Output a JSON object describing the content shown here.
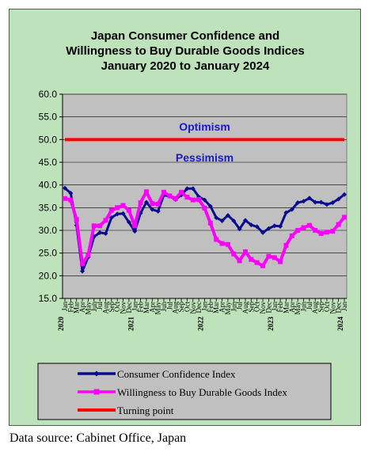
{
  "source_note": "Data source: Cabinet Office, Japan",
  "chart_data": {
    "type": "line",
    "title": [
      "Japan Consumer Confidence and",
      "Willingness to Buy Durable Goods Indices",
      "January 2020 to January 2024"
    ],
    "ylim": [
      15.0,
      60.0
    ],
    "y_ticks": [
      "15.0",
      "20.0",
      "25.0",
      "30.0",
      "35.0",
      "40.0",
      "45.0",
      "50.0",
      "55.0",
      "60.0"
    ],
    "grid": true,
    "x_labels": [
      "Jan",
      "Feb",
      "Mar",
      "Apr",
      "May",
      "Jun",
      "Jul",
      "Aug",
      "Sep",
      "Oct",
      "Nov",
      "Dec",
      "Jan",
      "Feb",
      "Mar",
      "Apr",
      "May",
      "Jun",
      "Jul",
      "Aug",
      "Sep",
      "Oct",
      "Nov",
      "Dec",
      "Jan",
      "Feb",
      "Mar",
      "Apr",
      "May",
      "Jun",
      "Jul",
      "Aug",
      "Sep",
      "Oct",
      "Nov",
      "Dec",
      "Jan",
      "Feb",
      "Mar",
      "Apr",
      "May",
      "Jun",
      "Jul",
      "Aug",
      "Sep",
      "Oct",
      "Nov",
      "Dec",
      "Jan"
    ],
    "year_labels": [
      {
        "index": 0,
        "label": "2020"
      },
      {
        "index": 12,
        "label": "2021"
      },
      {
        "index": 24,
        "label": "2022"
      },
      {
        "index": 36,
        "label": "2023"
      },
      {
        "index": 48,
        "label": "2024"
      }
    ],
    "annotations": [
      {
        "text": "Optimism",
        "y": 52.0,
        "x_index": 24,
        "color": "#1a1acc"
      },
      {
        "text": "Pessimism",
        "y": 45.2,
        "x_index": 24,
        "color": "#1a1acc"
      }
    ],
    "legend_position": "bottom",
    "series": [
      {
        "name": "Consumer Confidence Index",
        "color": "#0a0a8c",
        "marker": "diamond",
        "values": [
          39.3,
          38.2,
          31.1,
          21.0,
          24.1,
          28.6,
          29.5,
          29.3,
          32.8,
          33.6,
          33.7,
          31.8,
          29.8,
          33.8,
          36.2,
          34.6,
          34.2,
          37.8,
          37.5,
          36.8,
          37.8,
          39.2,
          39.2,
          37.4,
          36.7,
          35.3,
          32.8,
          32.1,
          33.3,
          32.1,
          30.3,
          32.2,
          31.2,
          30.8,
          29.5,
          30.4,
          31.0,
          30.9,
          33.9,
          34.6,
          36.1,
          36.4,
          37.1,
          36.2,
          36.2,
          35.7,
          36.1,
          36.9,
          37.9
        ]
      },
      {
        "name": "Willingness to Buy Durable Goods Index",
        "color": "#ff00ff",
        "marker": "square",
        "values": [
          37.0,
          36.7,
          32.4,
          22.6,
          24.6,
          31.0,
          31.0,
          32.2,
          34.4,
          35.0,
          35.5,
          34.4,
          31.0,
          36.1,
          38.5,
          35.9,
          35.8,
          38.4,
          37.6,
          37.0,
          38.4,
          37.3,
          36.7,
          36.8,
          34.9,
          31.6,
          28.0,
          27.1,
          26.9,
          24.8,
          23.3,
          25.3,
          23.6,
          22.9,
          22.2,
          24.3,
          24.0,
          23.1,
          26.7,
          28.8,
          30.0,
          30.6,
          31.1,
          30.0,
          29.3,
          29.6,
          29.8,
          31.3,
          32.9
        ]
      },
      {
        "name": "Turning point",
        "color": "#ff0000",
        "marker": "none",
        "values": [
          50.0,
          50.0,
          50.0,
          50.0,
          50.0,
          50.0,
          50.0,
          50.0,
          50.0,
          50.0,
          50.0,
          50.0,
          50.0,
          50.0,
          50.0,
          50.0,
          50.0,
          50.0,
          50.0,
          50.0,
          50.0,
          50.0,
          50.0,
          50.0,
          50.0,
          50.0,
          50.0,
          50.0,
          50.0,
          50.0,
          50.0,
          50.0,
          50.0,
          50.0,
          50.0,
          50.0,
          50.0,
          50.0,
          50.0,
          50.0,
          50.0,
          50.0,
          50.0,
          50.0,
          50.0,
          50.0,
          50.0,
          50.0,
          50.0
        ]
      }
    ]
  }
}
